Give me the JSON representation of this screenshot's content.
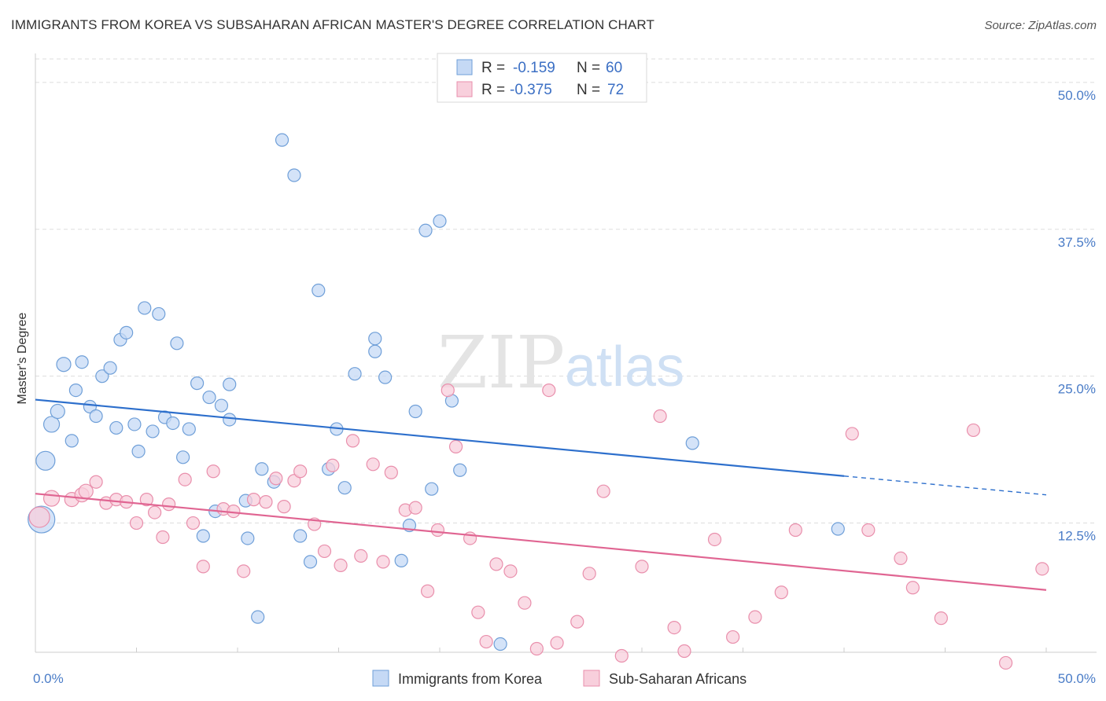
{
  "header": {
    "title": "IMMIGRANTS FROM KOREA VS SUBSAHARAN AFRICAN MASTER'S DEGREE CORRELATION CHART",
    "source": "Source: ZipAtlas.com"
  },
  "watermark": {
    "part1": "ZIP",
    "part2": "atlas"
  },
  "colors": {
    "blue_fill": "#c5d9f5",
    "blue_stroke": "#6f9fd8",
    "blue_line": "#2d6fcc",
    "pink_fill": "#f8cfdc",
    "pink_stroke": "#e98fac",
    "pink_line": "#e06592",
    "axis_label": "#4a7cc7",
    "grid": "#dddddd"
  },
  "legend": {
    "rows": [
      {
        "r_label": "R =",
        "r_value": "-0.159",
        "n_label": "N =",
        "n_value": "60",
        "color": "#c5d9f5",
        "stroke": "#6f9fd8"
      },
      {
        "r_label": "R =",
        "r_value": "-0.375",
        "n_label": "N =",
        "n_value": "72",
        "color": "#f8cfdc",
        "stroke": "#e98fac"
      }
    ]
  },
  "chart_data": {
    "type": "scatter",
    "title": "IMMIGRANTS FROM KOREA VS SUBSAHARAN AFRICAN MASTER'S DEGREE CORRELATION CHART",
    "ylabel": "Master's Degree",
    "xlabel": "",
    "xlim": [
      0,
      50
    ],
    "ylim": [
      1.5,
      52
    ],
    "x_tick_labels": [
      "0.0%",
      "50.0%"
    ],
    "y_ticks": [
      12.5,
      25.0,
      37.5,
      50.0
    ],
    "y_tick_labels": [
      "12.5%",
      "25.0%",
      "37.5%",
      "50.0%"
    ],
    "grid": true,
    "legend_position": "top-center",
    "series": [
      {
        "name": "Immigrants from Korea",
        "color": "#c5d9f5",
        "R": -0.159,
        "N": 60,
        "trend": {
          "x": [
            0,
            40,
            50
          ],
          "y": [
            23.0,
            16.5,
            14.9
          ],
          "solid_until": 40
        },
        "points": [
          [
            0.3,
            12.8,
            34
          ],
          [
            0.5,
            17.8,
            24
          ],
          [
            0.8,
            20.9,
            20
          ],
          [
            1.1,
            22.0,
            18
          ],
          [
            1.4,
            26.0,
            18
          ],
          [
            1.8,
            19.5,
            16
          ],
          [
            2.0,
            23.8,
            16
          ],
          [
            2.3,
            26.2,
            16
          ],
          [
            2.7,
            22.4,
            16
          ],
          [
            3.0,
            21.6,
            16
          ],
          [
            3.3,
            25.0,
            16
          ],
          [
            3.7,
            25.7,
            16
          ],
          [
            4.0,
            20.6,
            16
          ],
          [
            4.2,
            28.1,
            16
          ],
          [
            4.5,
            28.7,
            16
          ],
          [
            4.9,
            20.9,
            16
          ],
          [
            5.1,
            18.6,
            16
          ],
          [
            5.4,
            30.8,
            16
          ],
          [
            5.8,
            20.3,
            16
          ],
          [
            6.1,
            30.3,
            16
          ],
          [
            6.4,
            21.5,
            16
          ],
          [
            6.8,
            21.0,
            16
          ],
          [
            7.0,
            27.8,
            16
          ],
          [
            7.3,
            18.1,
            16
          ],
          [
            7.6,
            20.5,
            16
          ],
          [
            8.0,
            24.4,
            16
          ],
          [
            8.3,
            11.4,
            16
          ],
          [
            8.6,
            23.2,
            16
          ],
          [
            8.9,
            13.5,
            16
          ],
          [
            9.2,
            22.5,
            16
          ],
          [
            9.6,
            24.3,
            16
          ],
          [
            9.6,
            21.3,
            16
          ],
          [
            10.4,
            14.4,
            16
          ],
          [
            10.5,
            11.2,
            16
          ],
          [
            11.0,
            4.5,
            16
          ],
          [
            11.2,
            17.1,
            16
          ],
          [
            11.8,
            16.0,
            16
          ],
          [
            12.2,
            45.1,
            16
          ],
          [
            12.8,
            42.1,
            16
          ],
          [
            13.1,
            11.4,
            16
          ],
          [
            13.6,
            9.2,
            16
          ],
          [
            14.0,
            32.3,
            16
          ],
          [
            14.5,
            17.1,
            16
          ],
          [
            14.9,
            20.5,
            16
          ],
          [
            15.3,
            15.5,
            16
          ],
          [
            15.8,
            25.2,
            16
          ],
          [
            16.8,
            28.2,
            16
          ],
          [
            16.8,
            27.1,
            16
          ],
          [
            17.3,
            24.9,
            16
          ],
          [
            18.1,
            9.3,
            16
          ],
          [
            18.5,
            12.3,
            16
          ],
          [
            18.8,
            22.0,
            16
          ],
          [
            19.3,
            37.4,
            16
          ],
          [
            19.6,
            15.4,
            16
          ],
          [
            20.0,
            38.2,
            16
          ],
          [
            20.6,
            22.9,
            16
          ],
          [
            21.0,
            17.0,
            16
          ],
          [
            23.0,
            2.2,
            16
          ],
          [
            32.5,
            19.3,
            16
          ],
          [
            39.7,
            12.0,
            16
          ]
        ]
      },
      {
        "name": "Sub-Saharan Africans",
        "color": "#f8cfdc",
        "R": -0.375,
        "N": 72,
        "trend": {
          "x": [
            0,
            50
          ],
          "y": [
            15.0,
            6.8
          ],
          "solid_until": 50
        },
        "points": [
          [
            0.2,
            13.0,
            26
          ],
          [
            0.8,
            14.6,
            20
          ],
          [
            1.8,
            14.5,
            18
          ],
          [
            2.3,
            14.9,
            18
          ],
          [
            2.5,
            15.2,
            18
          ],
          [
            3.0,
            16.0,
            16
          ],
          [
            3.5,
            14.2,
            16
          ],
          [
            4.0,
            14.5,
            16
          ],
          [
            4.5,
            14.3,
            16
          ],
          [
            5.0,
            12.5,
            16
          ],
          [
            5.5,
            14.5,
            16
          ],
          [
            5.9,
            13.4,
            16
          ],
          [
            6.3,
            11.3,
            16
          ],
          [
            6.6,
            14.1,
            16
          ],
          [
            7.4,
            16.2,
            16
          ],
          [
            7.8,
            12.5,
            16
          ],
          [
            8.3,
            8.8,
            16
          ],
          [
            8.8,
            16.9,
            16
          ],
          [
            9.3,
            13.7,
            16
          ],
          [
            9.8,
            13.5,
            16
          ],
          [
            10.3,
            8.4,
            16
          ],
          [
            10.8,
            14.5,
            16
          ],
          [
            11.4,
            14.3,
            16
          ],
          [
            11.9,
            16.3,
            16
          ],
          [
            12.3,
            13.9,
            16
          ],
          [
            12.8,
            16.1,
            16
          ],
          [
            13.1,
            16.9,
            16
          ],
          [
            13.8,
            12.4,
            16
          ],
          [
            14.3,
            10.1,
            16
          ],
          [
            14.7,
            17.4,
            16
          ],
          [
            15.1,
            8.9,
            16
          ],
          [
            15.7,
            19.5,
            16
          ],
          [
            16.1,
            9.7,
            16
          ],
          [
            16.7,
            17.5,
            16
          ],
          [
            17.2,
            9.2,
            16
          ],
          [
            17.6,
            16.8,
            16
          ],
          [
            18.3,
            13.6,
            16
          ],
          [
            18.8,
            13.8,
            16
          ],
          [
            19.4,
            6.7,
            16
          ],
          [
            19.9,
            11.9,
            16
          ],
          [
            20.4,
            23.8,
            16
          ],
          [
            20.8,
            19.0,
            16
          ],
          [
            21.5,
            11.2,
            16
          ],
          [
            21.9,
            4.9,
            16
          ],
          [
            22.3,
            2.4,
            16
          ],
          [
            22.8,
            9.0,
            16
          ],
          [
            23.5,
            8.4,
            16
          ],
          [
            24.2,
            5.7,
            16
          ],
          [
            24.8,
            1.8,
            16
          ],
          [
            25.4,
            23.8,
            16
          ],
          [
            25.8,
            2.3,
            16
          ],
          [
            26.8,
            4.1,
            16
          ],
          [
            27.4,
            8.2,
            16
          ],
          [
            28.1,
            15.2,
            16
          ],
          [
            29.0,
            1.2,
            16
          ],
          [
            30.0,
            8.8,
            16
          ],
          [
            30.9,
            21.6,
            16
          ],
          [
            31.6,
            3.6,
            16
          ],
          [
            32.1,
            1.6,
            16
          ],
          [
            33.6,
            11.1,
            16
          ],
          [
            34.5,
            2.8,
            16
          ],
          [
            35.6,
            4.5,
            16
          ],
          [
            36.9,
            6.6,
            16
          ],
          [
            37.6,
            11.9,
            16
          ],
          [
            40.4,
            20.1,
            16
          ],
          [
            41.2,
            11.9,
            16
          ],
          [
            42.8,
            9.5,
            16
          ],
          [
            43.4,
            7.0,
            16
          ],
          [
            44.8,
            4.4,
            16
          ],
          [
            46.4,
            20.4,
            16
          ],
          [
            48.0,
            0.6,
            16
          ],
          [
            49.8,
            8.6,
            16
          ]
        ]
      }
    ]
  }
}
